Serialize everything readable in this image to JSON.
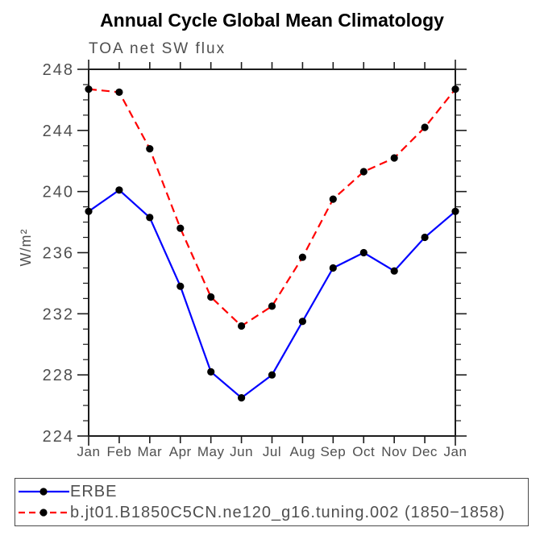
{
  "title": "Annual Cycle Global Mean Climatology",
  "chart": {
    "subtitle": "TOA net SW flux",
    "y_axis_label": "W/m²"
  },
  "legend": {
    "items": [
      {
        "label": "ERBE",
        "color": "#0000ff",
        "style": "solid",
        "marker": "filled-circle"
      },
      {
        "label": "b.jt01.B1850C5CN.ne120_g16.tuning.002 (1850−1858)",
        "color": "#ff0000",
        "style": "dashed",
        "marker": "filled-circle"
      }
    ]
  },
  "colors": {
    "erbe_line": "#0000ff",
    "model_line": "#ff0000",
    "marker": "#000000",
    "axis": "#1c1c1c",
    "label_text": "#4f4f4f",
    "title_text": "#000000",
    "background": "#ffffff"
  },
  "chart_data": {
    "type": "line",
    "title": "Annual Cycle Global Mean Climatology",
    "subtitle": "TOA net SW flux",
    "xlabel": "",
    "ylabel": "W/m²",
    "x_categories": [
      "Jan",
      "Feb",
      "Mar",
      "Apr",
      "May",
      "Jun",
      "Jul",
      "Aug",
      "Sep",
      "Oct",
      "Nov",
      "Dec",
      "Jan"
    ],
    "ylim": [
      224,
      248
    ],
    "yticks": [
      224,
      228,
      232,
      236,
      240,
      244,
      248
    ],
    "y_minor_step": 1,
    "grid": false,
    "frame": "box-with-outward-ticks",
    "legend_position": "bottom-left-box",
    "series": [
      {
        "name": "ERBE",
        "color": "#0000ff",
        "line_style": "solid",
        "marker": "filled-circle",
        "values": [
          238.7,
          240.1,
          238.3,
          233.8,
          228.2,
          226.5,
          228.0,
          231.5,
          235.0,
          236.0,
          234.8,
          237.0,
          238.7
        ]
      },
      {
        "name": "b.jt01.B1850C5CN.ne120_g16.tuning.002 (1850−1858)",
        "color": "#ff0000",
        "line_style": "dashed",
        "marker": "filled-circle",
        "values": [
          246.7,
          246.5,
          242.8,
          237.6,
          233.1,
          231.2,
          232.5,
          235.7,
          239.5,
          241.3,
          242.2,
          244.2,
          246.7
        ]
      }
    ]
  }
}
